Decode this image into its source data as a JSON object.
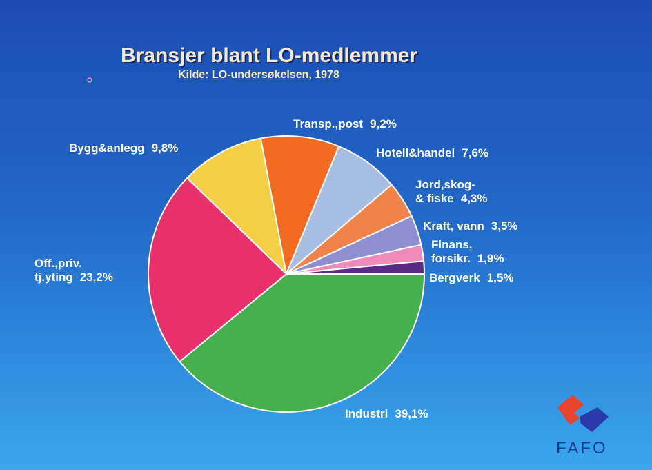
{
  "chart_data": {
    "type": "pie",
    "title": "Bransjer blant LO-medlemmer",
    "subtitle": "Kilde: LO-undersøkelsen, 1978",
    "categories": [
      "Industri",
      "Off.,priv.\ntj.yting",
      "Bygg&anlegg",
      "Transp.,post",
      "Hotell&handel",
      "Jord,skog-\n& fiske",
      "Kraft, vann",
      "Finans,\nforsikr.",
      "Bergverk"
    ],
    "values": [
      39.1,
      23.2,
      9.8,
      9.2,
      7.6,
      4.3,
      3.5,
      1.9,
      1.5
    ],
    "value_labels": [
      "39,1%",
      "23,2%",
      "9,8%",
      "9,2%",
      "7,6%",
      "4,3%",
      "3,5%",
      "1,9%",
      "1,5%"
    ],
    "colors": [
      "#45b04c",
      "#e7306c",
      "#f3cf45",
      "#f36b21",
      "#a8bde2",
      "#f0834a",
      "#8e8fd0",
      "#ef8ab9",
      "#5a2a86"
    ],
    "logo_text": "FAFO"
  }
}
